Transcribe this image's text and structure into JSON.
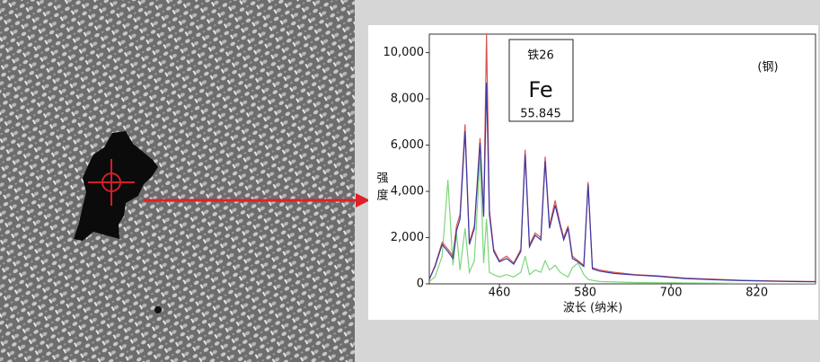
{
  "chart_data": {
    "type": "line",
    "x_label": "波长 (纳米)",
    "y_label": "强度",
    "annotation": "(钢)",
    "element_box": {
      "label": "铁26",
      "symbol": "Fe",
      "mass": 55.845
    },
    "x": [
      362,
      370,
      380,
      388,
      395,
      400,
      405,
      412,
      418,
      425,
      433,
      438,
      442,
      446,
      452,
      460,
      470,
      480,
      490,
      496,
      502,
      510,
      518,
      524,
      530,
      538,
      545,
      550,
      556,
      562,
      570,
      578,
      584,
      590,
      600,
      620,
      650,
      680,
      720,
      760,
      800,
      850,
      902
    ],
    "series": [
      {
        "color": "#d9534f",
        "values": [
          200,
          800,
          1800,
          1500,
          1200,
          2500,
          3000,
          6900,
          1800,
          2500,
          6300,
          3000,
          10800,
          3200,
          1500,
          1000,
          1200,
          900,
          1500,
          5800,
          1700,
          2200,
          2000,
          5500,
          2500,
          3600,
          2600,
          2000,
          2500,
          1200,
          1000,
          800,
          4400,
          700,
          600,
          500,
          400,
          350,
          250,
          200,
          150,
          120,
          100
        ]
      },
      {
        "color": "#3a3aa8",
        "values": [
          200,
          750,
          1700,
          1400,
          1100,
          2300,
          2800,
          6600,
          1700,
          2400,
          6100,
          2900,
          8700,
          3000,
          1400,
          950,
          1100,
          850,
          1400,
          5600,
          1600,
          2100,
          1900,
          5300,
          2400,
          3400,
          2500,
          1900,
          2400,
          1100,
          950,
          750,
          4300,
          650,
          550,
          450,
          380,
          330,
          230,
          180,
          140,
          110,
          90
        ]
      },
      {
        "color": "#7cd67c",
        "values": [
          100,
          300,
          1200,
          4500,
          800,
          2200,
          600,
          2400,
          500,
          1000,
          5500,
          900,
          2800,
          500,
          400,
          300,
          400,
          300,
          500,
          1200,
          400,
          600,
          500,
          1000,
          600,
          800,
          500,
          400,
          300,
          700,
          900,
          400,
          200,
          150,
          100,
          80,
          60,
          50,
          40,
          30,
          20,
          10,
          0
        ]
      }
    ],
    "xlim": [
      362,
      902
    ],
    "xticks": [
      460,
      580,
      700,
      820
    ],
    "ylim": [
      0,
      10800
    ],
    "yticks": [
      0,
      {
        "value": 2000,
        "label": "2,000"
      },
      {
        "value": 4000,
        "label": "4,000"
      },
      {
        "value": 6000,
        "label": "6,000"
      },
      {
        "value": 8000,
        "label": "8,000"
      },
      {
        "value": 10000,
        "label": "10,000"
      }
    ]
  }
}
